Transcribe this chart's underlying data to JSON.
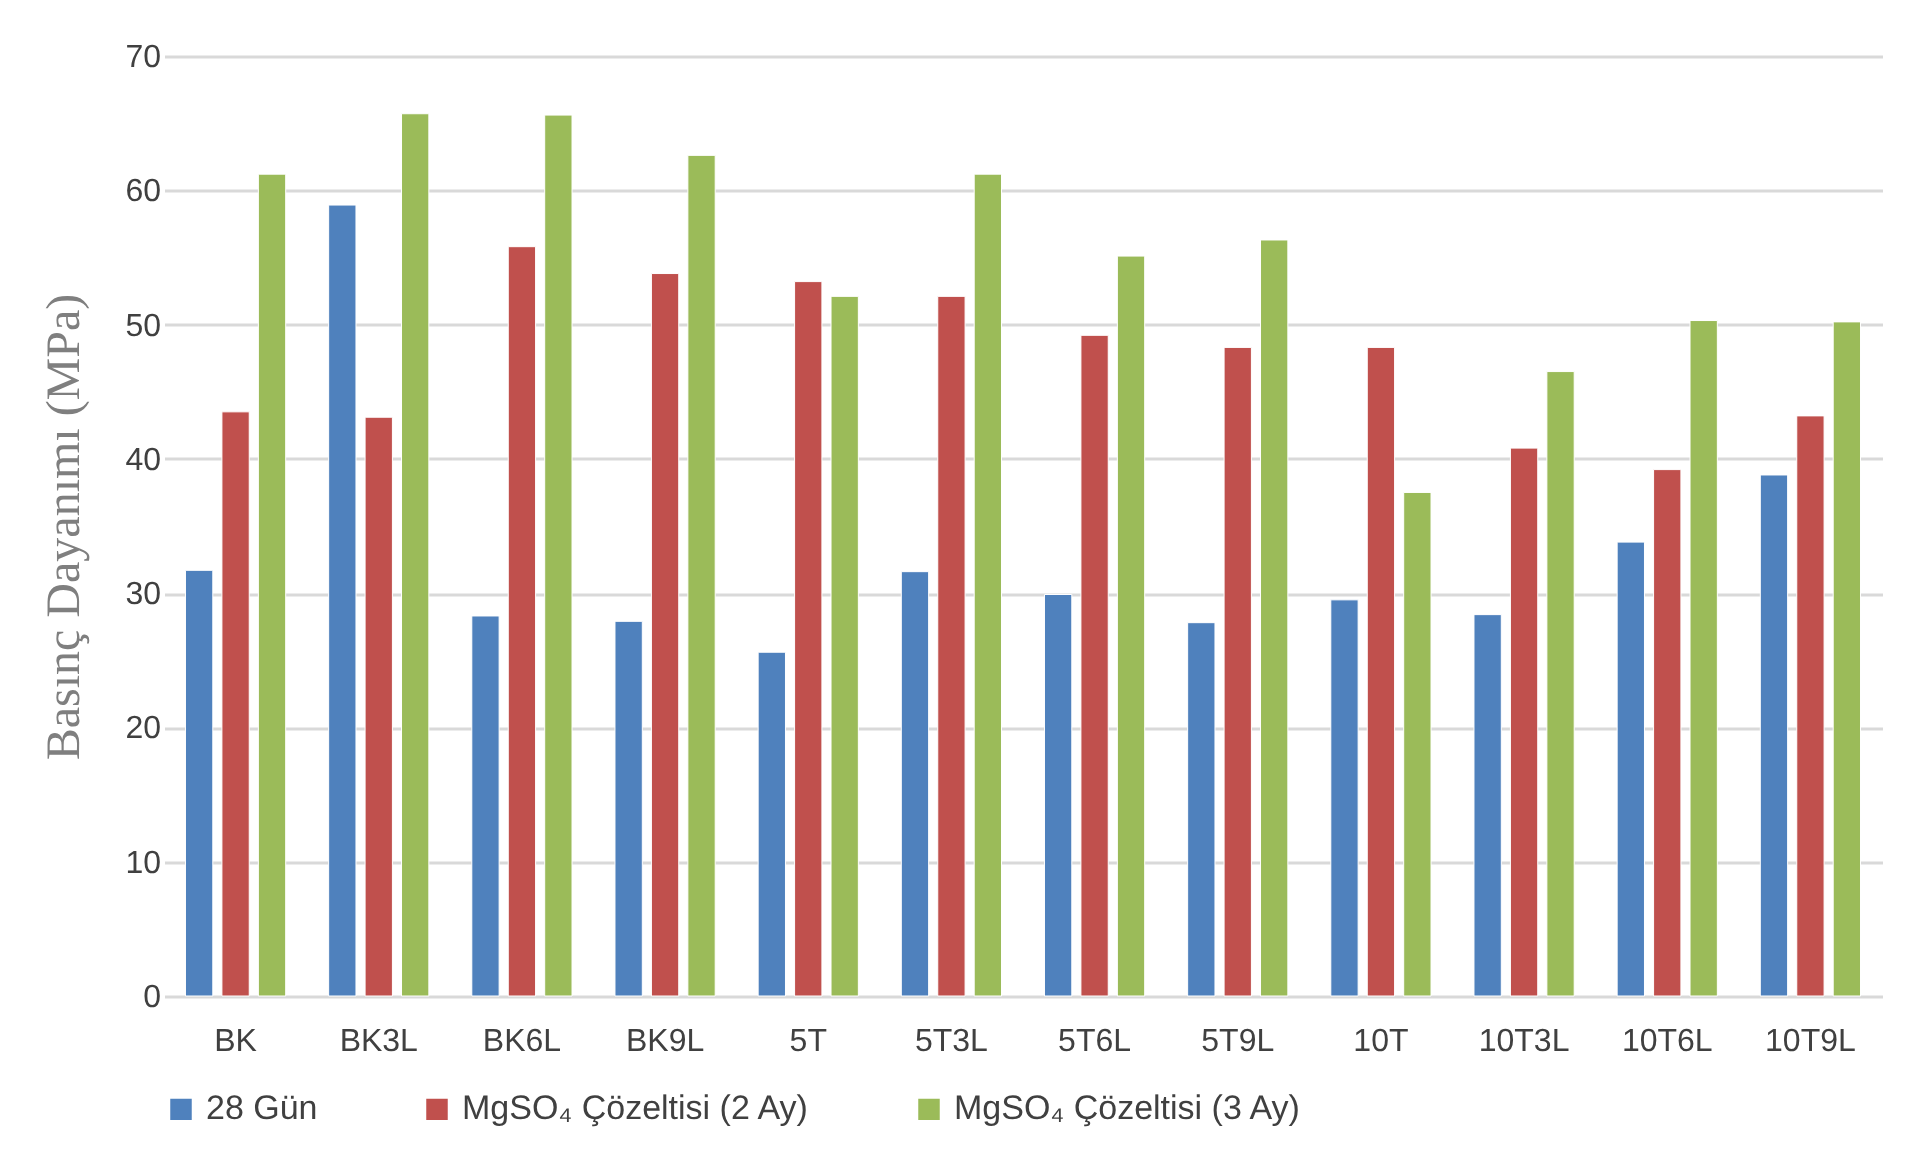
{
  "chart_data": {
    "type": "bar",
    "ylabel": "Basınç Dayanımı (MPa)",
    "categories": [
      "BK",
      "BK3L",
      "BK6L",
      "BK9L",
      "5T",
      "5T3L",
      "5T6L",
      "5T9L",
      "10T",
      "10T3L",
      "10T6L",
      "10T9L"
    ],
    "series": [
      {
        "name": "28 Gün",
        "color": "#4f81bd",
        "values": [
          31.7,
          58.9,
          28.3,
          27.9,
          25.6,
          31.6,
          29.9,
          27.8,
          29.5,
          28.4,
          33.8,
          38.8
        ]
      },
      {
        "name": "MgSO₄ Çözeltisi (2 Ay)",
        "color": "#c0504d",
        "values": [
          43.5,
          43.1,
          55.8,
          53.8,
          53.2,
          52.1,
          49.2,
          48.3,
          48.3,
          40.8,
          39.2,
          43.2
        ]
      },
      {
        "name": "MgSO₄ Çözeltisi (3 Ay)",
        "color": "#9bbb59",
        "values": [
          61.2,
          65.7,
          65.6,
          62.6,
          52.1,
          61.2,
          55.1,
          56.3,
          37.5,
          46.5,
          50.3,
          50.2
        ]
      }
    ],
    "ylim": [
      0,
      70
    ],
    "yticks": [
      0,
      10,
      20,
      30,
      40,
      50,
      60,
      70
    ],
    "grid": "y",
    "legend": "bottom"
  }
}
